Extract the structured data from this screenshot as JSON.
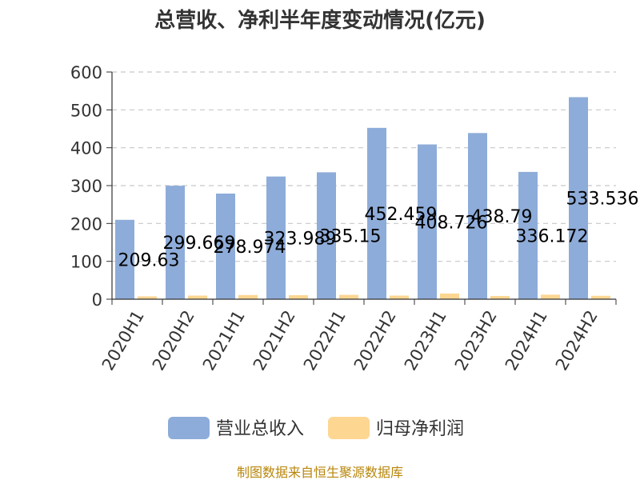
{
  "chart_data": {
    "type": "bar",
    "title": "总营收、净利半年度变动情况(亿元)",
    "categories": [
      "2020H1",
      "2020H2",
      "2021H1",
      "2021H2",
      "2022H1",
      "2022H2",
      "2023H1",
      "2023H2",
      "2024H1",
      "2024H2"
    ],
    "series": [
      {
        "name": "营业总收入",
        "color": "#8eacd9",
        "values": [
          209.63,
          299.669,
          278.974,
          323.989,
          335.15,
          452.459,
          408.726,
          438.79,
          336.172,
          533.536
        ],
        "labels": [
          "209.63",
          "299.669",
          "278.974",
          "323.989",
          "335.15",
          "452.459",
          "408.726",
          "438.79",
          "336.172",
          "533.536"
        ]
      },
      {
        "name": "归母净利润",
        "color": "#fdd692",
        "values": [
          7.5,
          9.5,
          11,
          10.5,
          11.5,
          9.5,
          15,
          8.5,
          12,
          9
        ]
      }
    ],
    "ylim": [
      0,
      600
    ],
    "yticks": [
      0,
      100,
      200,
      300,
      400,
      500,
      600
    ],
    "grid": true,
    "legend_position": "bottom-center"
  },
  "source": "制图数据来自恒生聚源数据库"
}
